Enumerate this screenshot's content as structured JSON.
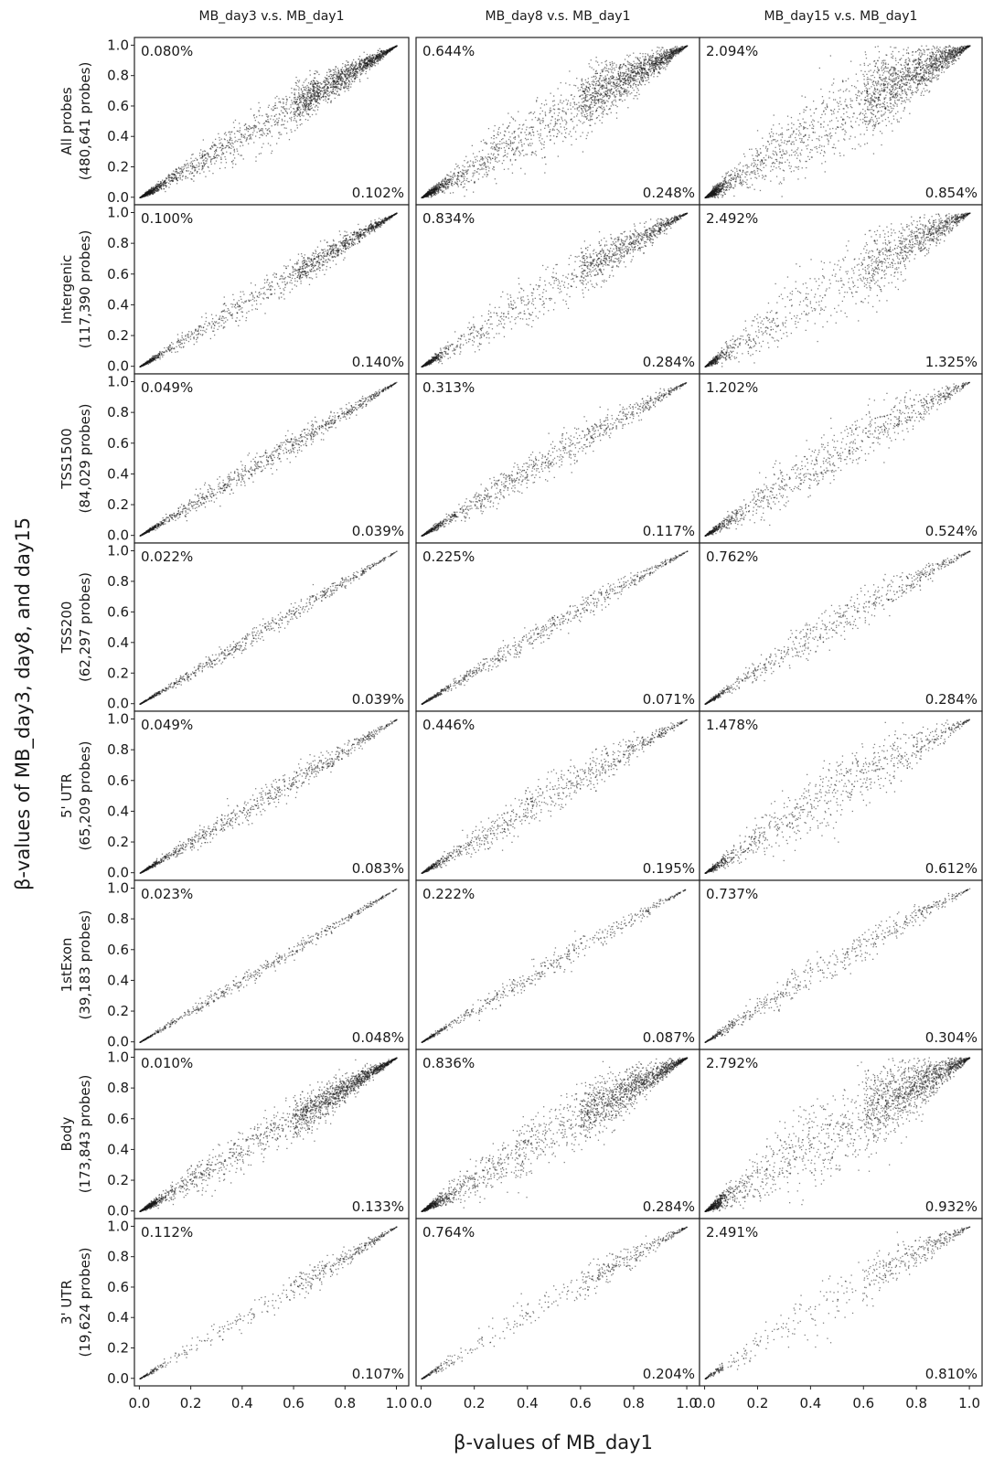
{
  "chart_data": {
    "type": "scatter",
    "ylabel": "β-values of MB_day3, day8, and day15",
    "xlabel": "β-values of MB_day1",
    "xlim": [
      0,
      1
    ],
    "ylim": [
      0,
      1
    ],
    "x_ticks": [
      "0.0",
      "0.2",
      "0.4",
      "0.6",
      "0.8",
      "1.0"
    ],
    "y_ticks": [
      "0.0",
      "0.2",
      "0.4",
      "0.6",
      "0.8",
      "1.0"
    ],
    "columns": [
      "MB_day3 v.s. MB_day1",
      "MB_day8 v.s. MB_day1",
      "MB_day15 v.s. MB_day1"
    ],
    "rows": [
      {
        "label": "All probes",
        "count": "(480,641 probes)"
      },
      {
        "label": "Intergenic",
        "count": "(117,390 probes)"
      },
      {
        "label": "TSS1500",
        "count": "(84,029 probes)"
      },
      {
        "label": "TSS200",
        "count": "(62,297 probes)"
      },
      {
        "label": "5' UTR",
        "count": "(65,209 probes)"
      },
      {
        "label": "1stExon",
        "count": "(39,183 probes)"
      },
      {
        "label": "Body",
        "count": "(173,843 probes)"
      },
      {
        "label": "3' UTR",
        "count": "(19,624 probes)"
      }
    ],
    "percent_above": [
      [
        "0.080%",
        "0.644%",
        "2.094%"
      ],
      [
        "0.100%",
        "0.834%",
        "2.492%"
      ],
      [
        "0.049%",
        "0.313%",
        "1.202%"
      ],
      [
        "0.022%",
        "0.225%",
        "0.762%"
      ],
      [
        "0.049%",
        "0.446%",
        "1.478%"
      ],
      [
        "0.023%",
        "0.222%",
        "0.737%"
      ],
      [
        "0.010%",
        "0.836%",
        "2.792%"
      ],
      [
        "0.112%",
        "0.764%",
        "2.491%"
      ]
    ],
    "percent_below": [
      [
        "0.102%",
        "0.248%",
        "0.854%"
      ],
      [
        "0.140%",
        "0.284%",
        "1.325%"
      ],
      [
        "0.039%",
        "0.117%",
        "0.524%"
      ],
      [
        "0.039%",
        "0.071%",
        "0.284%"
      ],
      [
        "0.083%",
        "0.195%",
        "0.612%"
      ],
      [
        "0.048%",
        "0.087%",
        "0.304%"
      ],
      [
        "0.133%",
        "0.284%",
        "0.932%"
      ],
      [
        "0.107%",
        "0.204%",
        "0.810%"
      ]
    ],
    "point_color": "#1a1a1a"
  }
}
